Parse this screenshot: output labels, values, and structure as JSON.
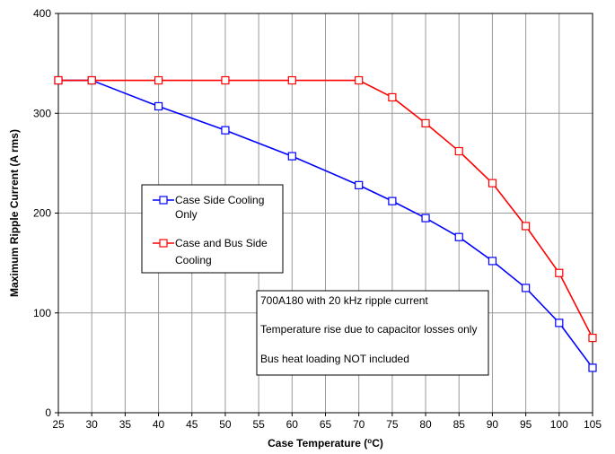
{
  "chart_data": {
    "type": "line",
    "xlabel": "Case Temperature (",
    "xlabel_super": "o",
    "xlabel_unit": "C)",
    "ylabel": "Maximum Ripple Current (A rms)",
    "xlim": [
      25,
      105
    ],
    "ylim": [
      0,
      400
    ],
    "x_ticks": [
      25,
      30,
      35,
      40,
      45,
      50,
      55,
      60,
      65,
      70,
      75,
      80,
      85,
      90,
      95,
      100,
      105
    ],
    "y_ticks": [
      0,
      100,
      200,
      300,
      400
    ],
    "grid": true,
    "legend_position": "center-left",
    "series": [
      {
        "name_line1": "Case Side Cooling",
        "name_line2": "Only",
        "color": "#0000FF",
        "marker": "square-open",
        "x": [
          25,
          30,
          40,
          50,
          60,
          70,
          75,
          80,
          85,
          90,
          95,
          100,
          105
        ],
        "values": [
          333,
          333,
          307,
          283,
          257,
          228,
          212,
          195,
          176,
          152,
          125,
          90,
          45
        ]
      },
      {
        "name_line1": "Case and Bus Side",
        "name_line2": "Cooling",
        "color": "#FF0000",
        "marker": "square-open",
        "x": [
          25,
          30,
          40,
          50,
          60,
          70,
          75,
          80,
          85,
          90,
          95,
          100,
          105
        ],
        "values": [
          333,
          333,
          333,
          333,
          333,
          333,
          316,
          290,
          262,
          230,
          187,
          140,
          75
        ]
      }
    ],
    "annotations": [
      "700A180 with 20 kHz ripple current",
      "Temperature rise due to capacitor losses only",
      "Bus heat loading NOT included"
    ]
  }
}
